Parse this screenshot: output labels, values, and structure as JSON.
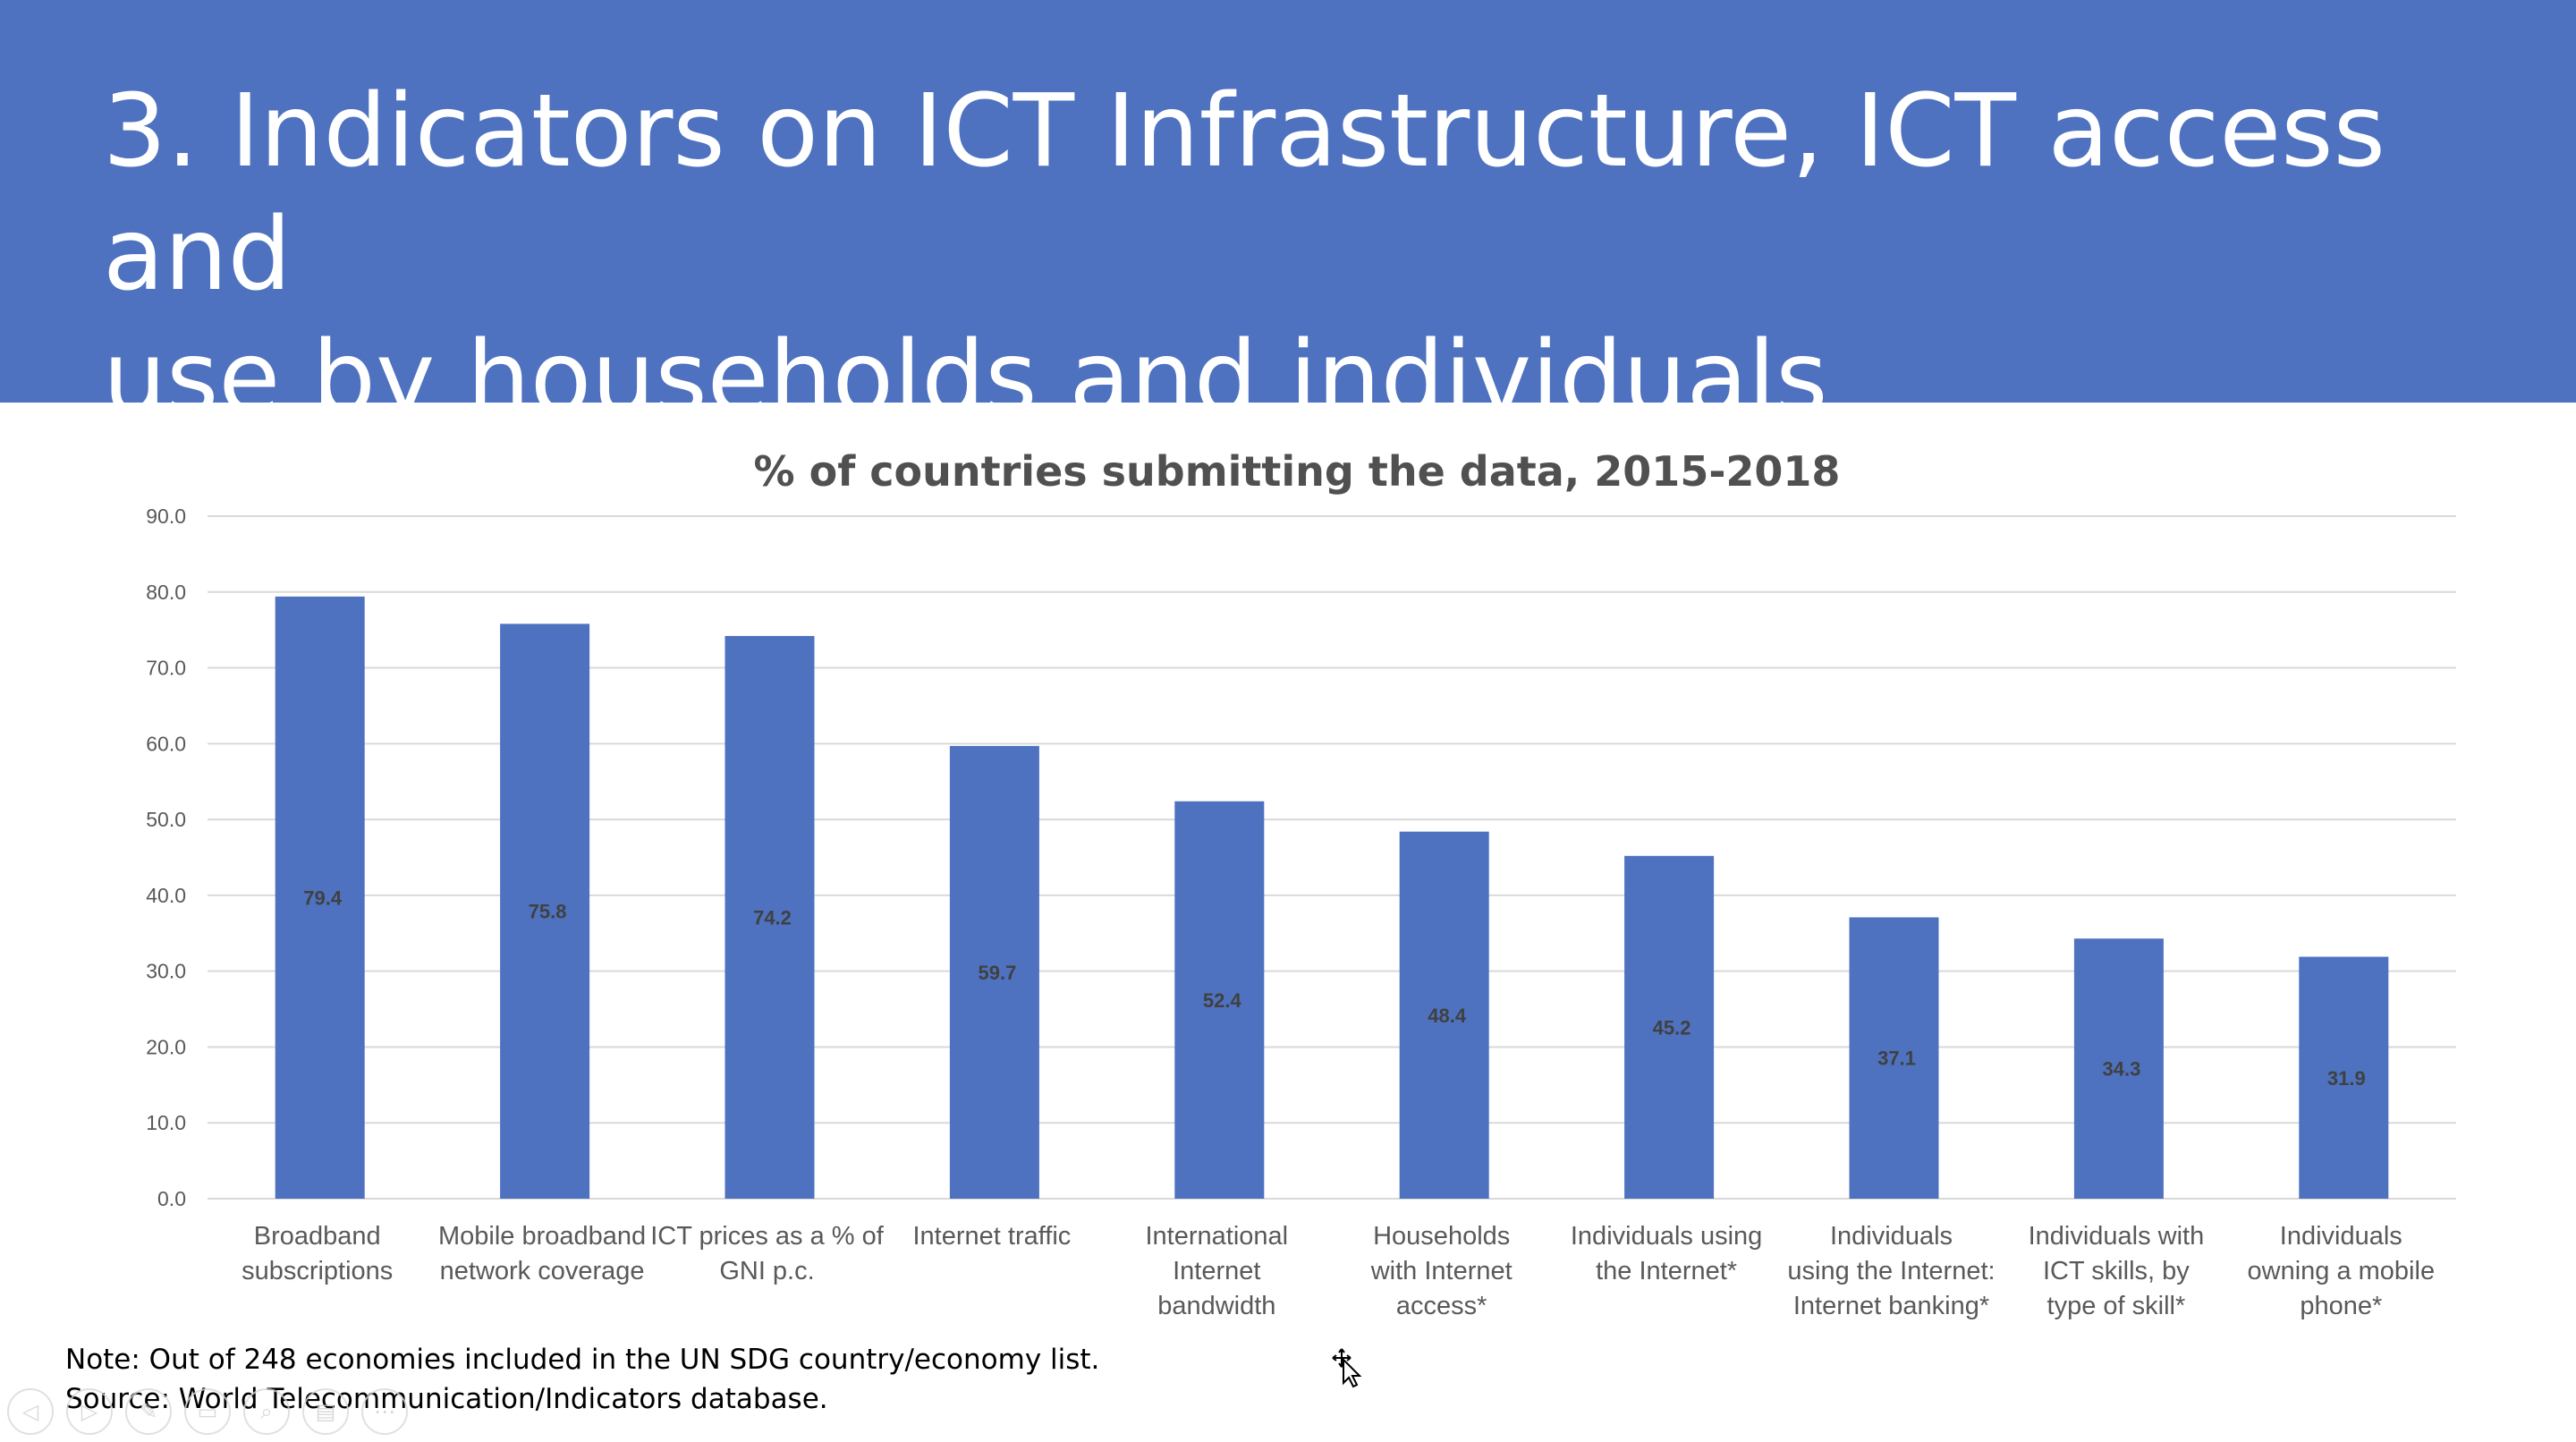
{
  "slide": {
    "title_line1": "3. Indicators on ICT Infrastructure, ICT access and",
    "title_line2": "use by households and individuals",
    "header_color": "#4e72c0",
    "note": "Note: Out of 248 economies included in the UN SDG country/economy list.",
    "source": "Source: World Telecommunication/Indicators database."
  },
  "player_controls": [
    {
      "name": "previous-icon",
      "glyph": "◁"
    },
    {
      "name": "next-icon",
      "glyph": "▷"
    },
    {
      "name": "pen-icon",
      "glyph": "✎"
    },
    {
      "name": "slides-icon",
      "glyph": "▭"
    },
    {
      "name": "zoom-icon",
      "glyph": "⌕"
    },
    {
      "name": "subtitles-icon",
      "glyph": "▤"
    },
    {
      "name": "more-options-icon",
      "glyph": "⋯"
    }
  ],
  "chart_data": {
    "type": "bar",
    "title": "% of countries submitting the data, 2015-2018",
    "bar_color": "#4e72c0",
    "ylim": [
      0,
      90
    ],
    "yticks": [
      "0.0",
      "10.0",
      "20.0",
      "30.0",
      "40.0",
      "50.0",
      "60.0",
      "70.0",
      "80.0",
      "90.0"
    ],
    "grid": true,
    "categories": [
      [
        "Broadband",
        "subscriptions"
      ],
      [
        "Mobile broadband",
        "network coverage"
      ],
      [
        "ICT prices as a % of",
        "GNI p.c."
      ],
      [
        "Internet traffic"
      ],
      [
        "International",
        "Internet",
        "bandwidth"
      ],
      [
        "Households",
        "with Internet",
        "access*"
      ],
      [
        "Individuals using",
        "the Internet*"
      ],
      [
        "Individuals",
        "using the Internet:",
        "Internet banking*"
      ],
      [
        "Individuals with",
        "ICT skills, by",
        "type of skill*"
      ],
      [
        "Individuals",
        "owning a mobile",
        "phone*"
      ]
    ],
    "values": [
      79.4,
      75.8,
      74.2,
      59.7,
      52.4,
      48.4,
      45.2,
      37.1,
      34.3,
      31.9
    ],
    "value_labels": [
      "79.4",
      "75.8",
      "74.2",
      "59.7",
      "52.4",
      "48.4",
      "45.2",
      "37.1",
      "34.3",
      "31.9"
    ]
  }
}
